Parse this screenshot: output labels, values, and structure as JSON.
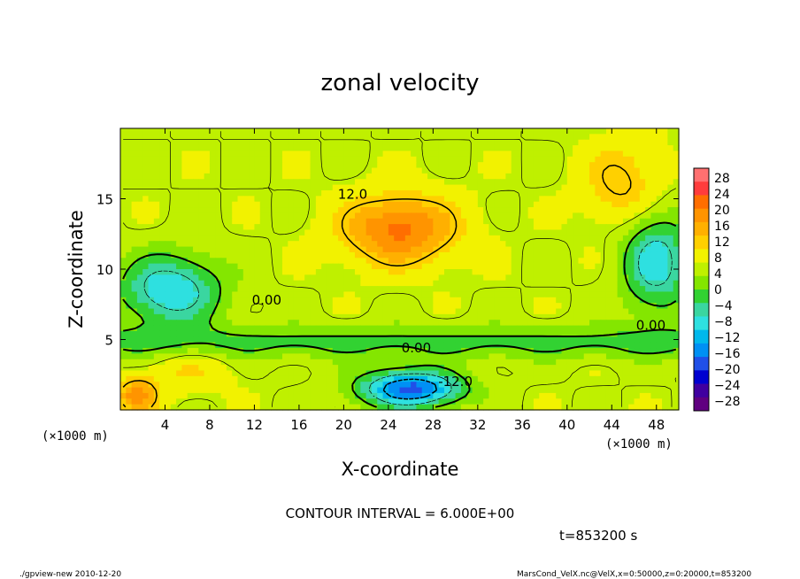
{
  "chart_data": {
    "type": "heatmap",
    "title": "zonal velocity",
    "xlabel": "X-coordinate",
    "ylabel": "Z-coordinate",
    "x_unit": "(×1000 m)",
    "z_unit": "(×1000 m)",
    "xlim": [
      0,
      50
    ],
    "zlim": [
      0,
      20
    ],
    "x_ticks": [
      "4",
      "8",
      "12",
      "16",
      "20",
      "24",
      "28",
      "32",
      "36",
      "40",
      "44",
      "48"
    ],
    "z_ticks": [
      "5",
      "10",
      "15"
    ],
    "colorbar_ticks": [
      "28",
      "24",
      "20",
      "16",
      "12",
      "8",
      "4",
      "0",
      "−4",
      "−8",
      "−12",
      "−16",
      "−20",
      "−24",
      "−28"
    ],
    "colorbar_colors": [
      "#ff7070",
      "#ff3c3c",
      "#ff6e00",
      "#ff9400",
      "#ffb000",
      "#ffd000",
      "#f2f200",
      "#bff000",
      "#84e600",
      "#32d232",
      "#3ad6a0",
      "#2ee0e0",
      "#00b8ec",
      "#0090f4",
      "#2050e8",
      "#0000d0",
      "#4000a0",
      "#600080"
    ],
    "contour_labels": [
      {
        "text": "12.0",
        "x": 20.8,
        "z": 15.0
      },
      {
        "text": "0.00",
        "x": 13.1,
        "z": 7.5
      },
      {
        "text": "0.00",
        "x": 26.5,
        "z": 4.1
      },
      {
        "text": "-12.0",
        "x": 30.0,
        "z": 1.7
      },
      {
        "text": "0.00",
        "x": 47.5,
        "z": 5.7
      }
    ],
    "contour_interval": "CONTOUR INTERVAL = 6.000E+00",
    "time": "t=853200 s",
    "footer_left": "./gpview-new  2010-12-20",
    "footer_right": "MarsCond_VelX.nc@VelX,x=0:50000,z=0:20000,t=853200",
    "features": [
      {
        "x": 25.0,
        "z": 12.8,
        "value": 17,
        "sx": 5.0,
        "sz": 2.4
      },
      {
        "x": 26.0,
        "z": 1.5,
        "value": -18,
        "sx": 4.5,
        "sz": 1.3
      },
      {
        "x": 4.5,
        "z": 8.5,
        "value": -10,
        "sx": 4.5,
        "sz": 2.5
      },
      {
        "x": 1.5,
        "z": 1.0,
        "value": 14,
        "sx": 1.8,
        "sz": 1.2
      },
      {
        "x": 48.0,
        "z": 10.5,
        "value": -9,
        "sx": 3.0,
        "sz": 3.5
      },
      {
        "x": 45.0,
        "z": 16.0,
        "value": 9,
        "sx": 3.5,
        "sz": 3.0
      },
      {
        "x": 6.0,
        "z": 3.0,
        "value": 6,
        "sx": 4.0,
        "sz": 1.8
      },
      {
        "x": 14.0,
        "z": 2.5,
        "value": 2,
        "sx": 2.0,
        "sz": 2.5
      },
      {
        "x": 40.0,
        "z": 3.0,
        "value": 2,
        "sx": 3.0,
        "sz": 2.0
      }
    ],
    "background_value": 6
  }
}
